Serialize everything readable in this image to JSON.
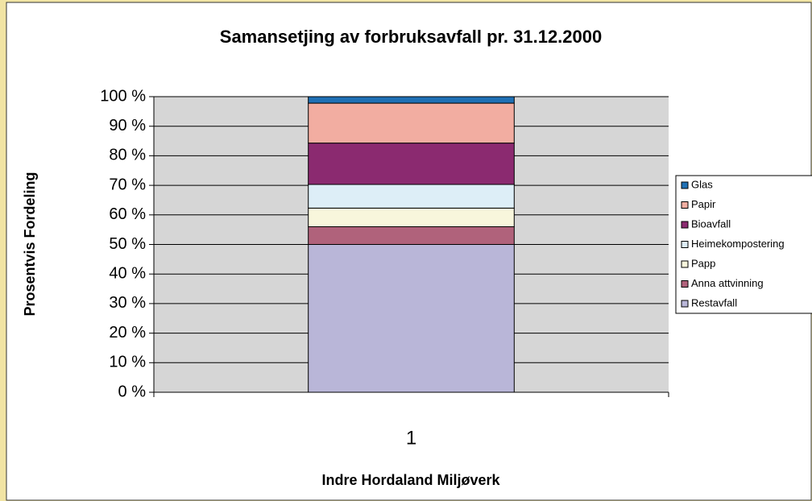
{
  "chart_data": {
    "type": "bar",
    "stacked": true,
    "title": "Samansetjing av forbruksavfall pr. 31.12.2000",
    "x_label": "Indre Hordaland Miljøverk",
    "y_label": "Prosentvis Fordeling",
    "categories": [
      "1"
    ],
    "series": [
      {
        "name": "Restavfall",
        "color": "#b9b6d8",
        "values": [
          50
        ]
      },
      {
        "name": "Anna attvinning",
        "color": "#b0627b",
        "values": [
          6
        ]
      },
      {
        "name": "Papp",
        "color": "#f8f6dc",
        "values": [
          6.3
        ]
      },
      {
        "name": "Heimekompostering",
        "color": "#ddeef7",
        "values": [
          8
        ]
      },
      {
        "name": "Bioavfall",
        "color": "#8b2a70",
        "values": [
          14
        ]
      },
      {
        "name": "Papir",
        "color": "#f2ada1",
        "values": [
          13.5
        ]
      },
      {
        "name": "Glas",
        "color": "#1f70b5",
        "values": [
          2.2
        ]
      }
    ],
    "ylim": [
      0,
      100
    ],
    "yticks": [
      {
        "value": 0,
        "label": "0 %"
      },
      {
        "value": 10,
        "label": "10 %"
      },
      {
        "value": 20,
        "label": "20 %"
      },
      {
        "value": 30,
        "label": "30 %"
      },
      {
        "value": 40,
        "label": "40 %"
      },
      {
        "value": 50,
        "label": "50 %"
      },
      {
        "value": 60,
        "label": "60 %"
      },
      {
        "value": 70,
        "label": "70 %"
      },
      {
        "value": 80,
        "label": "80 %"
      },
      {
        "value": 90,
        "label": "90 %"
      },
      {
        "value": 100,
        "label": "100 %"
      }
    ],
    "grid": true,
    "legend": "right"
  }
}
